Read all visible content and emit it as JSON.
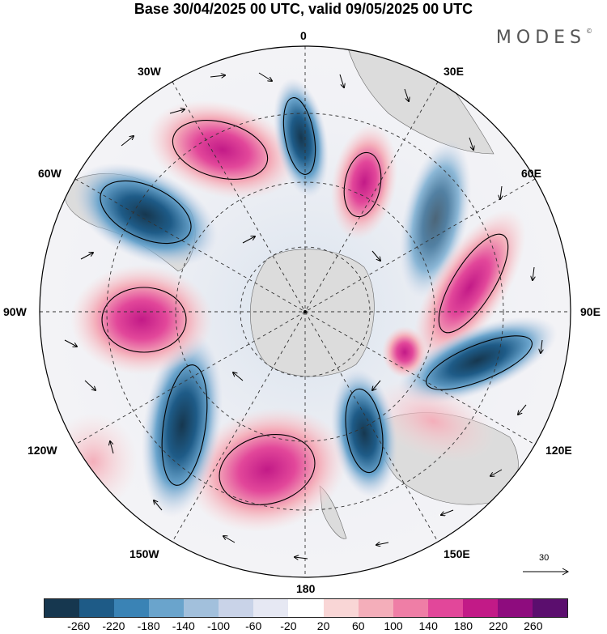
{
  "title": "Base 30/04/2025 00 UTC, valid 09/05/2025 00 UTC",
  "brand": "MODES",
  "brand_mark": "©",
  "longitude_labels": {
    "lon_0": "0",
    "lon_30e": "30E",
    "lon_60e": "60E",
    "lon_90e": "90E",
    "lon_120e": "120E",
    "lon_150e": "150E",
    "lon_180": "180",
    "lon_150w": "150W",
    "lon_120w": "120W",
    "lon_90w": "90W",
    "lon_60w": "60W",
    "lon_30w": "30W"
  },
  "wind_scale_label": "30",
  "colorbar": {
    "colors": [
      "#16374f",
      "#1e5b87",
      "#3a83b5",
      "#6aa4cc",
      "#a2c0dc",
      "#c9d3e8",
      "#e6e8f3",
      "#ffffff",
      "#f9d6d6",
      "#f4aeba",
      "#ef7ea6",
      "#e2479a",
      "#c21a87",
      "#8e0c7e",
      "#5b0e6e"
    ],
    "tick_labels": [
      "-260",
      "-220",
      "-180",
      "-140",
      "-100",
      "-60",
      "-20",
      "20",
      "60",
      "100",
      "140",
      "180",
      "220",
      "260"
    ]
  },
  "colors": {
    "land": "#dcdcdc",
    "graticule": "#333333"
  }
}
